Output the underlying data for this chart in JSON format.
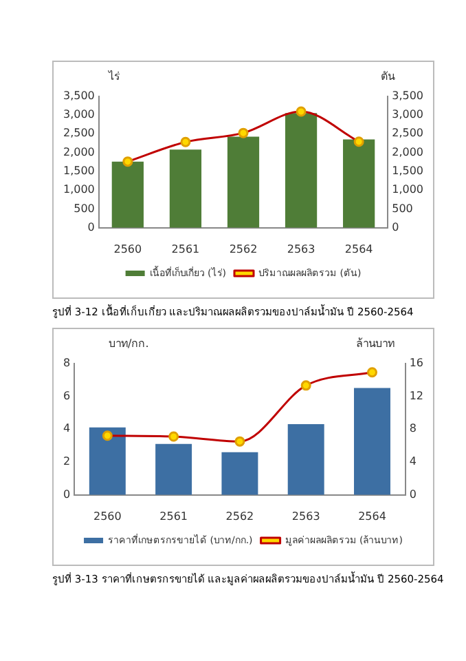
{
  "chart_data": [
    {
      "type": "bar",
      "categories": [
        "2560",
        "2561",
        "2562",
        "2563",
        "2564"
      ],
      "ylabel": "ไร่",
      "y2label": "ตัน",
      "series": [
        {
          "name": "เนื้อที่เก็บเกี่ยว (ไร่)",
          "color": "#4f7d37",
          "values": [
            1760,
            2080,
            2420,
            3050,
            2350
          ]
        },
        {
          "name": "ปริมาณผลผลิตรวม (ตัน)",
          "type": "line",
          "axis": "y2",
          "color": "#c00000",
          "values": [
            1760,
            2280,
            2520,
            3090,
            2290
          ]
        }
      ],
      "ylim": [
        0,
        3500
      ],
      "yticks": [
        0,
        {
          "value": 500,
          "label": "500"
        },
        {
          "value": 1000,
          "label": "1,000"
        },
        {
          "value": 1500,
          "label": "1,500"
        },
        {
          "value": 2000,
          "label": "2,000"
        },
        {
          "value": 2500,
          "label": "2,500"
        },
        {
          "value": 3000,
          "label": "3,000"
        },
        {
          "value": 3500,
          "label": "3,500"
        }
      ],
      "y2lim": [
        0,
        3500
      ],
      "y2ticks": [
        0,
        {
          "value": 500,
          "label": "500"
        },
        {
          "value": 1000,
          "label": "1,000"
        },
        {
          "value": 1500,
          "label": "1,500"
        },
        {
          "value": 2000,
          "label": "2,000"
        },
        {
          "value": 2500,
          "label": "2,500"
        },
        {
          "value": 3000,
          "label": "3,000"
        },
        {
          "value": 3500,
          "label": "3,500"
        }
      ],
      "legend": "bottom",
      "marker": "circle",
      "annotations": [
        "รูปที่ 3-12 เนื้อที่เก็บเกี่ยว และปริมาณผลผลิตรวมของปาล์มน้ำมัน ปี 2560-2564"
      ]
    },
    {
      "type": "bar",
      "categories": [
        "2560",
        "2561",
        "2562",
        "2563",
        "2564"
      ],
      "ylabel": "บาท/กก.",
      "y2label": "ล้านบาท",
      "series": [
        {
          "name": "ราคาที่เกษตรกรขายได้ (บาท/กก.)",
          "color": "#3d6fa3",
          "values": [
            4.1,
            3.1,
            2.6,
            4.3,
            6.5
          ]
        },
        {
          "name": "มูลค่าผลผลิตรวม (ล้านบาท)",
          "type": "line",
          "axis": "y2",
          "color": "#c00000",
          "values": [
            7.2,
            7.1,
            6.5,
            13.3,
            14.9
          ]
        }
      ],
      "ylim": [
        0,
        8
      ],
      "yticks": [
        0,
        2,
        4,
        6,
        8
      ],
      "y2lim": [
        0,
        16
      ],
      "y2ticks": [
        0,
        4,
        8,
        12,
        16
      ],
      "legend": "bottom",
      "marker": "circle",
      "annotations": [
        "รูปที่ 3-13 ราคาที่เกษตรกรขายได้ และมูลค่าผลผลิตรวมของปาล์มน้ำมัน ปี 2560-2564"
      ]
    }
  ]
}
